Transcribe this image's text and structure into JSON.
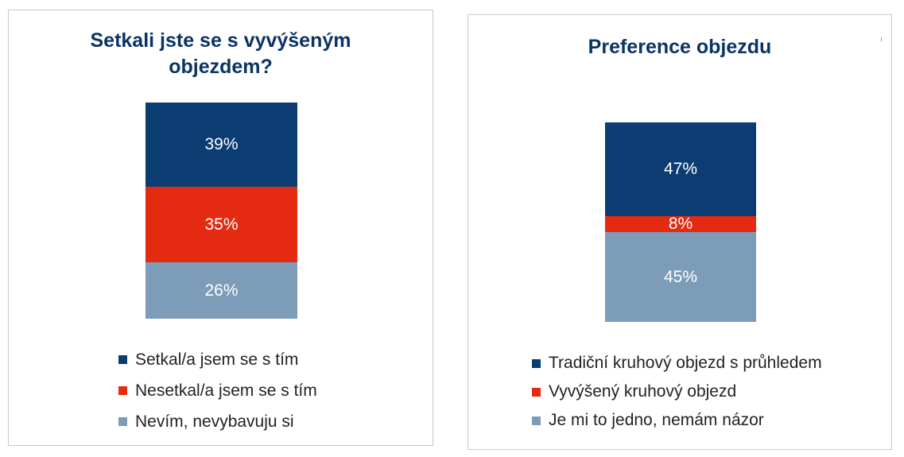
{
  "chart_data": [
    {
      "type": "bar",
      "stacked": true,
      "title": "Setkali jste se s vyvýšeným objezdem?",
      "ylim": [
        0,
        100
      ],
      "series": [
        {
          "name": "Setkal/a jsem se s tím",
          "value": 39,
          "label": "39%",
          "color": "#0b3d73"
        },
        {
          "name": "Nesetkal/a jsem se s tím",
          "value": 35,
          "label": "35%",
          "color": "#e52a12"
        },
        {
          "name": "Nevím, nevybavuju si",
          "value": 26,
          "label": "26%",
          "color": "#7d9cb8"
        }
      ],
      "legend": "bottom"
    },
    {
      "type": "bar",
      "stacked": true,
      "title": "Preference objezdu",
      "ylim": [
        0,
        100
      ],
      "series": [
        {
          "name": "Tradiční kruhový objezd s průhledem",
          "value": 47,
          "label": "47%",
          "color": "#0b3d73"
        },
        {
          "name": "Vyvýšený kruhový objezd",
          "value": 8,
          "label": "8%",
          "color": "#e52a12"
        },
        {
          "name": "Je mi to jedno, nemám názor",
          "value": 45,
          "label": "45%",
          "color": "#7d9cb8"
        }
      ],
      "legend": "bottom"
    }
  ]
}
